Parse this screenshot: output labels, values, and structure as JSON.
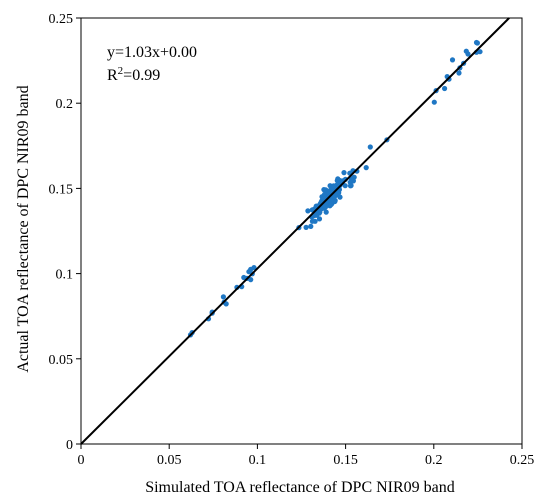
{
  "chart_data": {
    "type": "scatter",
    "xlabel": "Simulated TOA reflectance of DPC NIR09 band",
    "ylabel": "Actual TOA reflectance of DPC NIR09 band",
    "xlim": [
      0,
      0.25
    ],
    "ylim": [
      0,
      0.25
    ],
    "xticks": [
      "0",
      "0.05",
      "0.1",
      "0.15",
      "0.2",
      "0.25"
    ],
    "yticks": [
      "0",
      "0.05",
      "0.1",
      "0.15",
      "0.2",
      "0.25"
    ],
    "grid": false,
    "annotations": {
      "equation": "y=1.03x+0.00",
      "r2_prefix": "R",
      "r2_sup": "2",
      "r2_suffix": "=0.99"
    },
    "fit_line": {
      "slope": 1.03,
      "intercept": 0.0,
      "color": "#000000"
    },
    "point_color": "#1f77c4",
    "points": [
      [
        0.063,
        0.0654
      ],
      [
        0.0621,
        0.064
      ],
      [
        0.1235,
        0.127
      ],
      [
        0.1617,
        0.1622
      ],
      [
        0.1461,
        0.1515
      ],
      [
        0.0941,
        0.0972
      ],
      [
        0.2242,
        0.2299
      ],
      [
        0.0744,
        0.0774
      ],
      [
        0.0962,
        0.1025
      ],
      [
        0.1549,
        0.1566
      ],
      [
        0.1421,
        0.1464
      ],
      [
        0.1438,
        0.1427
      ],
      [
        0.1327,
        0.1307
      ],
      [
        0.1448,
        0.1517
      ],
      [
        0.1415,
        0.1472
      ],
      [
        0.1324,
        0.1379
      ],
      [
        0.1468,
        0.1518
      ],
      [
        0.1396,
        0.1419
      ],
      [
        0.0911,
        0.0924
      ],
      [
        0.1366,
        0.1393
      ],
      [
        0.1398,
        0.1483
      ],
      [
        0.1276,
        0.1271
      ],
      [
        0.1734,
        0.1785
      ],
      [
        0.1414,
        0.1428
      ],
      [
        0.2184,
        0.2305
      ],
      [
        0.2106,
        0.2254
      ],
      [
        0.2247,
        0.2353
      ],
      [
        0.1544,
        0.1544
      ],
      [
        0.0723,
        0.0735
      ],
      [
        0.1469,
        0.1546
      ],
      [
        0.1389,
        0.1471
      ],
      [
        0.1286,
        0.1368
      ],
      [
        0.1384,
        0.1409
      ],
      [
        0.164,
        0.1743
      ],
      [
        0.1531,
        0.1557
      ],
      [
        0.1377,
        0.1493
      ],
      [
        0.1311,
        0.1374
      ],
      [
        0.2003,
        0.2006
      ],
      [
        0.1422,
        0.1431
      ],
      [
        0.0884,
        0.0919
      ],
      [
        0.1524,
        0.1589
      ],
      [
        0.1444,
        0.1499
      ],
      [
        0.1456,
        0.1556
      ],
      [
        0.0744,
        0.0768
      ],
      [
        0.1446,
        0.1462
      ],
      [
        0.0981,
        0.1035
      ],
      [
        0.1387,
        0.1416
      ],
      [
        0.1542,
        0.1604
      ],
      [
        0.1303,
        0.1277
      ],
      [
        0.1564,
        0.1601
      ],
      [
        0.1358,
        0.1412
      ],
      [
        0.1386,
        0.1403
      ],
      [
        0.1364,
        0.1381
      ],
      [
        0.1403,
        0.1416
      ],
      [
        0.0807,
        0.0863
      ],
      [
        0.1412,
        0.1516
      ],
      [
        0.1453,
        0.1546
      ],
      [
        0.2242,
        0.2356
      ],
      [
        0.1333,
        0.1391
      ],
      [
        0.1364,
        0.1399
      ],
      [
        0.1312,
        0.1307
      ],
      [
        0.1419,
        0.1493
      ],
      [
        0.1422,
        0.1453
      ],
      [
        0.1498,
        0.1516
      ],
      [
        0.1428,
        0.1513
      ],
      [
        0.1528,
        0.1515
      ],
      [
        0.1354,
        0.1361
      ],
      [
        0.1323,
        0.1351
      ],
      [
        0.1423,
        0.148
      ],
      [
        0.2086,
        0.2141
      ],
      [
        0.1411,
        0.1467
      ],
      [
        0.1391,
        0.1466
      ],
      [
        0.1468,
        0.1449
      ],
      [
        0.1405,
        0.1445
      ],
      [
        0.2194,
        0.2289
      ],
      [
        0.1461,
        0.1524
      ],
      [
        0.1372,
        0.1392
      ],
      [
        0.139,
        0.1456
      ],
      [
        0.1526,
        0.1536
      ],
      [
        0.1466,
        0.1527
      ],
      [
        0.1385,
        0.1399
      ],
      [
        0.1435,
        0.1495
      ],
      [
        0.1455,
        0.1523
      ],
      [
        0.1359,
        0.1378
      ],
      [
        0.1531,
        0.1517
      ],
      [
        0.1393,
        0.1437
      ],
      [
        0.1393,
        0.1455
      ],
      [
        0.1384,
        0.1459
      ],
      [
        0.139,
        0.1361
      ],
      [
        0.1434,
        0.1513
      ],
      [
        0.1321,
        0.134
      ],
      [
        0.1367,
        0.1423
      ],
      [
        0.1366,
        0.1429
      ],
      [
        0.1499,
        0.1553
      ],
      [
        0.1351,
        0.1355
      ],
      [
        0.1448,
        0.1517
      ],
      [
        0.1321,
        0.1341
      ],
      [
        0.1433,
        0.1515
      ],
      [
        0.1422,
        0.1481
      ],
      [
        0.1447,
        0.1472
      ],
      [
        0.1408,
        0.1447
      ],
      [
        0.1414,
        0.1443
      ],
      [
        0.1439,
        0.1423
      ],
      [
        0.0952,
        0.1011
      ],
      [
        0.1354,
        0.1384
      ],
      [
        0.1453,
        0.1485
      ],
      [
        0.1481,
        0.1535
      ],
      [
        0.1397,
        0.145
      ],
      [
        0.1433,
        0.1489
      ],
      [
        0.1352,
        0.1321
      ],
      [
        0.1366,
        0.1451
      ],
      [
        0.1405,
        0.1412
      ],
      [
        0.1442,
        0.1457
      ],
      [
        0.2076,
        0.2156
      ],
      [
        0.1491,
        0.1593
      ],
      [
        0.1332,
        0.1375
      ],
      [
        0.2013,
        0.2074
      ],
      [
        0.1393,
        0.1418
      ],
      [
        0.1418,
        0.1452
      ],
      [
        0.0962,
        0.0965
      ],
      [
        0.2143,
        0.2177
      ],
      [
        0.142,
        0.1468
      ],
      [
        0.1465,
        0.1493
      ],
      [
        0.1397,
        0.1434
      ],
      [
        0.1367,
        0.1397
      ],
      [
        0.1309,
        0.1333
      ],
      [
        0.1438,
        0.1462
      ],
      [
        0.1461,
        0.1489
      ],
      [
        0.1387,
        0.1491
      ],
      [
        0.1337,
        0.1383
      ],
      [
        0.1461,
        0.1474
      ],
      [
        0.1378,
        0.1384
      ],
      [
        0.1373,
        0.1422
      ],
      [
        0.1441,
        0.1429
      ],
      [
        0.1398,
        0.1409
      ],
      [
        0.1463,
        0.1496
      ],
      [
        0.1349,
        0.1385
      ],
      [
        0.137,
        0.1425
      ],
      [
        0.1426,
        0.1471
      ],
      [
        0.1411,
        0.1398
      ],
      [
        0.1412,
        0.1466
      ],
      [
        0.1484,
        0.1544
      ],
      [
        0.1405,
        0.1412
      ],
      [
        0.1422,
        0.1464
      ],
      [
        0.1381,
        0.1409
      ],
      [
        0.1409,
        0.1444
      ],
      [
        0.1398,
        0.1424
      ],
      [
        0.1334,
        0.1396
      ],
      [
        0.1331,
        0.1365
      ],
      [
        0.1453,
        0.1498
      ],
      [
        0.1412,
        0.1449
      ],
      [
        0.1408,
        0.1454
      ],
      [
        0.1362,
        0.1421
      ],
      [
        0.1391,
        0.1405
      ],
      [
        0.1422,
        0.1451
      ],
      [
        0.1355,
        0.1407
      ],
      [
        0.1413,
        0.1488
      ],
      [
        0.1335,
        0.1383
      ],
      [
        0.1376,
        0.1421
      ],
      [
        0.1423,
        0.1412
      ],
      [
        0.1331,
        0.1376
      ],
      [
        0.0823,
        0.0822
      ],
      [
        0.1359,
        0.1405
      ],
      [
        0.1381,
        0.1465
      ],
      [
        0.0971,
        0.0999
      ],
      [
        0.1395,
        0.1424
      ],
      [
        0.1371,
        0.141
      ],
      [
        0.2061,
        0.2086
      ],
      [
        0.1457,
        0.1504
      ],
      [
        0.1398,
        0.1436
      ],
      [
        0.1339,
        0.1395
      ],
      [
        0.0923,
        0.0977
      ],
      [
        0.1372,
        0.1432
      ],
      [
        0.1417,
        0.1463
      ],
      [
        0.1406,
        0.1461
      ],
      [
        0.1418,
        0.1478
      ],
      [
        0.1413,
        0.1441
      ],
      [
        0.1417,
        0.1452
      ],
      [
        0.1404,
        0.1467
      ],
      [
        0.2262,
        0.2302
      ],
      [
        0.1372,
        0.1392
      ],
      [
        0.1383,
        0.1413
      ],
      [
        0.1358,
        0.1392
      ],
      [
        0.1343,
        0.139
      ],
      [
        0.1423,
        0.1459
      ],
      [
        0.1412,
        0.1428
      ],
      [
        0.1336,
        0.1342
      ],
      [
        0.1368,
        0.1383
      ],
      [
        0.1431,
        0.1492
      ],
      [
        0.1438,
        0.1466
      ],
      [
        0.143,
        0.1447
      ],
      [
        0.1415,
        0.1423
      ],
      [
        0.1427,
        0.1475
      ],
      [
        0.1319,
        0.1371
      ],
      [
        0.1376,
        0.1436
      ],
      [
        0.2169,
        0.2234
      ],
      [
        0.1419,
        0.1406
      ],
      [
        0.1377,
        0.1401
      ],
      [
        0.2148,
        0.2207
      ],
      [
        0.0811,
        0.0832
      ],
      [
        0.1386,
        0.1391
      ]
    ]
  }
}
